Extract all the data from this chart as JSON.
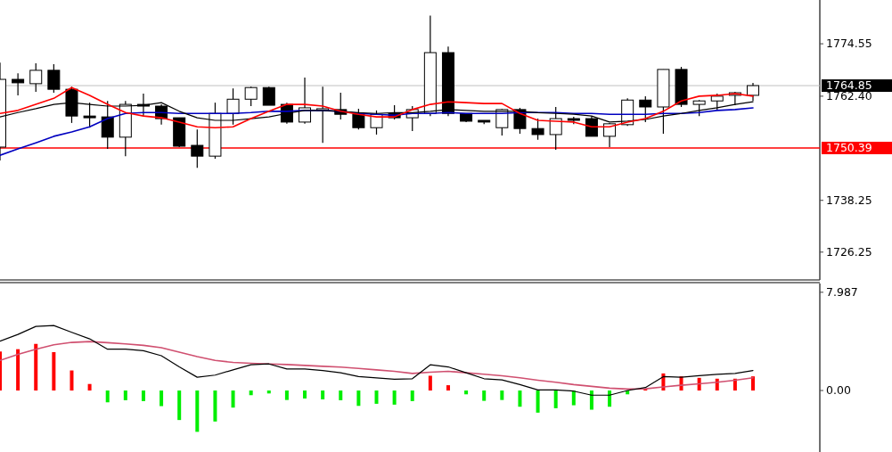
{
  "chart_data": [
    {
      "type": "candlestick",
      "categories": [
        null,
        null,
        null,
        null,
        null,
        null,
        null,
        null,
        null,
        null,
        null,
        null,
        null,
        null,
        null,
        null,
        null,
        null,
        null,
        null,
        null,
        null,
        null,
        null,
        null,
        null,
        null,
        null,
        null,
        null,
        null,
        null,
        null,
        null,
        null,
        null,
        null,
        null,
        null,
        null,
        null,
        null,
        null
      ],
      "ohlc": [
        [
          1750.6,
          1770.2,
          1747.5,
          1766.3
        ],
        [
          1766.3,
          1767.7,
          1762.6,
          1765.5
        ],
        [
          1765.3,
          1770.0,
          1763.4,
          1768.4
        ],
        [
          1768.4,
          1769.8,
          1763.2,
          1764.0
        ],
        [
          1764.0,
          1764.6,
          1756.2,
          1757.8
        ],
        [
          1757.8,
          1760.9,
          1755.1,
          1757.4
        ],
        [
          1757.6,
          1761.3,
          1750.2,
          1752.9
        ],
        [
          1752.9,
          1761.3,
          1748.5,
          1760.5
        ],
        [
          1760.5,
          1763.0,
          1757.8,
          1760.1
        ],
        [
          1760.1,
          1760.5,
          1755.8,
          1757.2
        ],
        [
          1757.4,
          1757.4,
          1750.6,
          1750.8
        ],
        [
          1751.0,
          1754.7,
          1745.8,
          1748.5
        ],
        [
          1748.5,
          1760.9,
          1747.9,
          1758.4
        ],
        [
          1758.4,
          1764.2,
          1755.8,
          1761.7
        ],
        [
          1761.7,
          1764.6,
          1760.1,
          1764.4
        ],
        [
          1764.4,
          1764.6,
          1760.3,
          1760.3
        ],
        [
          1760.5,
          1760.9,
          1756.0,
          1756.4
        ],
        [
          1756.4,
          1766.7,
          1756.0,
          1759.7
        ],
        [
          1759.1,
          1764.6,
          1751.6,
          1759.5
        ],
        [
          1759.3,
          1763.2,
          1757.0,
          1758.2
        ],
        [
          1758.2,
          1759.5,
          1754.7,
          1755.1
        ],
        [
          1755.1,
          1759.1,
          1753.5,
          1758.2
        ],
        [
          1758.4,
          1760.3,
          1757.0,
          1757.4
        ],
        [
          1757.4,
          1760.1,
          1754.3,
          1759.3
        ],
        [
          1758.4,
          1781.1,
          1757.8,
          1772.5
        ],
        [
          1772.5,
          1773.9,
          1757.8,
          1758.4
        ],
        [
          1758.4,
          1758.4,
          1756.4,
          1756.6
        ],
        [
          1756.8,
          1756.8,
          1755.9,
          1756.4
        ],
        [
          1755.1,
          1759.5,
          1753.3,
          1759.3
        ],
        [
          1759.3,
          1759.7,
          1753.7,
          1754.9
        ],
        [
          1754.9,
          1757.2,
          1752.3,
          1753.5
        ],
        [
          1753.5,
          1759.9,
          1750.0,
          1757.2
        ],
        [
          1757.2,
          1757.6,
          1755.9,
          1756.8
        ],
        [
          1757.2,
          1757.8,
          1753.1,
          1753.1
        ],
        [
          1753.1,
          1756.2,
          1750.6,
          1756.0
        ],
        [
          1755.8,
          1761.9,
          1755.5,
          1761.5
        ],
        [
          1761.5,
          1762.4,
          1756.4,
          1759.9
        ],
        [
          1759.9,
          1768.6,
          1753.7,
          1768.6
        ],
        [
          1768.6,
          1769.2,
          1759.9,
          1760.5
        ],
        [
          1760.5,
          1761.5,
          1757.8,
          1761.3
        ],
        [
          1761.3,
          1763.0,
          1759.3,
          1762.4
        ],
        [
          1762.6,
          1763.4,
          1760.3,
          1763.2
        ],
        [
          1762.6,
          1765.5,
          1761.3,
          1764.85
        ]
      ],
      "series": [
        {
          "type": "line",
          "color": "#ff0000",
          "values": [
            1758.4,
            1759.1,
            1760.5,
            1761.9,
            1764.4,
            1762.6,
            1760.5,
            1758.6,
            1757.8,
            1757.4,
            1756.4,
            1755.3,
            1755.1,
            1755.3,
            1757.2,
            1758.9,
            1760.5,
            1760.5,
            1760.1,
            1758.9,
            1758.2,
            1757.6,
            1757.6,
            1759.3,
            1760.5,
            1761.1,
            1760.9,
            1760.7,
            1760.7,
            1758.4,
            1756.8,
            1756.6,
            1756.4,
            1755.3,
            1755.3,
            1756.4,
            1757.2,
            1758.9,
            1761.3,
            1762.4,
            1762.6,
            1763.0,
            1762.4
          ]
        },
        {
          "type": "line",
          "color": "#000000",
          "values": [
            1757.6,
            1758.6,
            1759.5,
            1760.5,
            1760.9,
            1760.5,
            1760.1,
            1760.1,
            1760.3,
            1760.9,
            1758.9,
            1757.4,
            1756.8,
            1756.8,
            1757.2,
            1757.6,
            1758.4,
            1759.1,
            1759.1,
            1758.9,
            1758.6,
            1758.4,
            1758.6,
            1758.6,
            1758.9,
            1759.3,
            1759.1,
            1758.9,
            1758.9,
            1758.9,
            1758.6,
            1758.4,
            1758.2,
            1757.8,
            1756.4,
            1756.6,
            1757.0,
            1757.8,
            1758.4,
            1759.1,
            1759.7,
            1760.5,
            1761.1
          ]
        },
        {
          "type": "line",
          "color": "#0000c0",
          "values": [
            1748.7,
            1750.2,
            1751.6,
            1753.1,
            1754.1,
            1755.3,
            1757.2,
            1758.4,
            1758.6,
            1758.6,
            1758.4,
            1758.4,
            1758.4,
            1758.4,
            1758.6,
            1758.9,
            1758.9,
            1759.1,
            1759.1,
            1758.9,
            1758.4,
            1758.2,
            1758.0,
            1758.4,
            1758.4,
            1758.6,
            1758.4,
            1758.4,
            1758.4,
            1758.6,
            1758.6,
            1758.6,
            1758.4,
            1758.4,
            1758.2,
            1758.2,
            1758.2,
            1758.4,
            1758.4,
            1758.6,
            1759.1,
            1759.3,
            1759.7
          ]
        }
      ],
      "ylim": [
        1719.8,
        1784.7
      ],
      "yticks": [
        1774.55,
        {
          "value": 1762.4,
          "label": "1762.40"
        },
        1738.25,
        1726.25
      ],
      "ref_lines": [
        {
          "axis": "y",
          "value": 1764.85,
          "label": "1764.85",
          "color": "#c0c0c0"
        },
        {
          "axis": "y",
          "value": 1750.39,
          "label": "1750.39",
          "color": "#ff0000"
        }
      ]
    },
    {
      "type": "bar",
      "categories": [
        null,
        null,
        null,
        null,
        null,
        null,
        null,
        null,
        null,
        null,
        null,
        null,
        null,
        null,
        null,
        null,
        null,
        null,
        null,
        null,
        null,
        null,
        null,
        null,
        null,
        null,
        null,
        null,
        null,
        null,
        null,
        null,
        null,
        null,
        null,
        null,
        null,
        null,
        null,
        null,
        null,
        null,
        null
      ],
      "series": [
        {
          "type": "bar",
          "values": [
            3.17,
            3.36,
            3.79,
            3.12,
            1.63,
            0.53,
            -0.96,
            -0.79,
            -0.86,
            -1.27,
            -2.4,
            -3.36,
            -2.52,
            -1.39,
            -0.38,
            -0.24,
            -0.77,
            -0.65,
            -0.72,
            -0.79,
            -1.25,
            -1.08,
            -1.15,
            -0.86,
            1.2,
            0.43,
            -0.31,
            -0.84,
            -0.77,
            -1.32,
            -1.8,
            -1.44,
            -1.2,
            -1.56,
            -1.32,
            -0.31,
            0.12,
            1.39,
            1.15,
            1.03,
            0.96,
            0.96,
            1.15
          ],
          "colors": [
            "#ff0000",
            "#ff0000",
            "#ff0000",
            "#ff0000",
            "#ff0000",
            "#ff0000",
            "#00ee00",
            "#00ee00",
            "#00ee00",
            "#00ee00",
            "#00ee00",
            "#00ee00",
            "#00ee00",
            "#00ee00",
            "#00ee00",
            "#00ee00",
            "#00ee00",
            "#00ee00",
            "#00ee00",
            "#00ee00",
            "#00ee00",
            "#00ee00",
            "#00ee00",
            "#00ee00",
            "#ff0000",
            "#ff0000",
            "#00ee00",
            "#00ee00",
            "#00ee00",
            "#00ee00",
            "#00ee00",
            "#00ee00",
            "#00ee00",
            "#00ee00",
            "#00ee00",
            "#00ee00",
            "#ff0000",
            "#ff0000",
            "#ff0000",
            "#ff0000",
            "#ff0000",
            "#ff0000",
            "#ff0000"
          ]
        },
        {
          "type": "line",
          "color": "#000000",
          "values": [
            4.01,
            4.56,
            5.21,
            5.28,
            4.73,
            4.2,
            3.36,
            3.36,
            3.24,
            2.83,
            1.92,
            1.08,
            1.25,
            1.68,
            2.09,
            2.16,
            1.75,
            1.75,
            1.63,
            1.44,
            1.13,
            1.03,
            0.91,
            0.96,
            2.09,
            1.92,
            1.44,
            0.96,
            0.86,
            0.48,
            0.05,
            0.05,
            -0.05,
            -0.38,
            -0.38,
            0.0,
            0.24,
            1.13,
            1.08,
            1.2,
            1.32,
            1.39,
            1.63
          ]
        },
        {
          "type": "line",
          "color": "#d05070",
          "values": [
            2.45,
            2.93,
            3.36,
            3.72,
            3.91,
            3.98,
            3.89,
            3.79,
            3.67,
            3.48,
            3.12,
            2.76,
            2.45,
            2.28,
            2.21,
            2.16,
            2.11,
            2.04,
            1.97,
            1.9,
            1.8,
            1.68,
            1.56,
            1.39,
            1.49,
            1.56,
            1.44,
            1.32,
            1.2,
            1.03,
            0.84,
            0.67,
            0.48,
            0.34,
            0.19,
            0.12,
            0.14,
            0.29,
            0.43,
            0.55,
            0.67,
            0.84,
            1.03
          ]
        }
      ],
      "ylim": [
        -5.0,
        8.7
      ],
      "yticks": [
        7.987,
        {
          "value": 0,
          "label": "0.00"
        }
      ]
    }
  ]
}
